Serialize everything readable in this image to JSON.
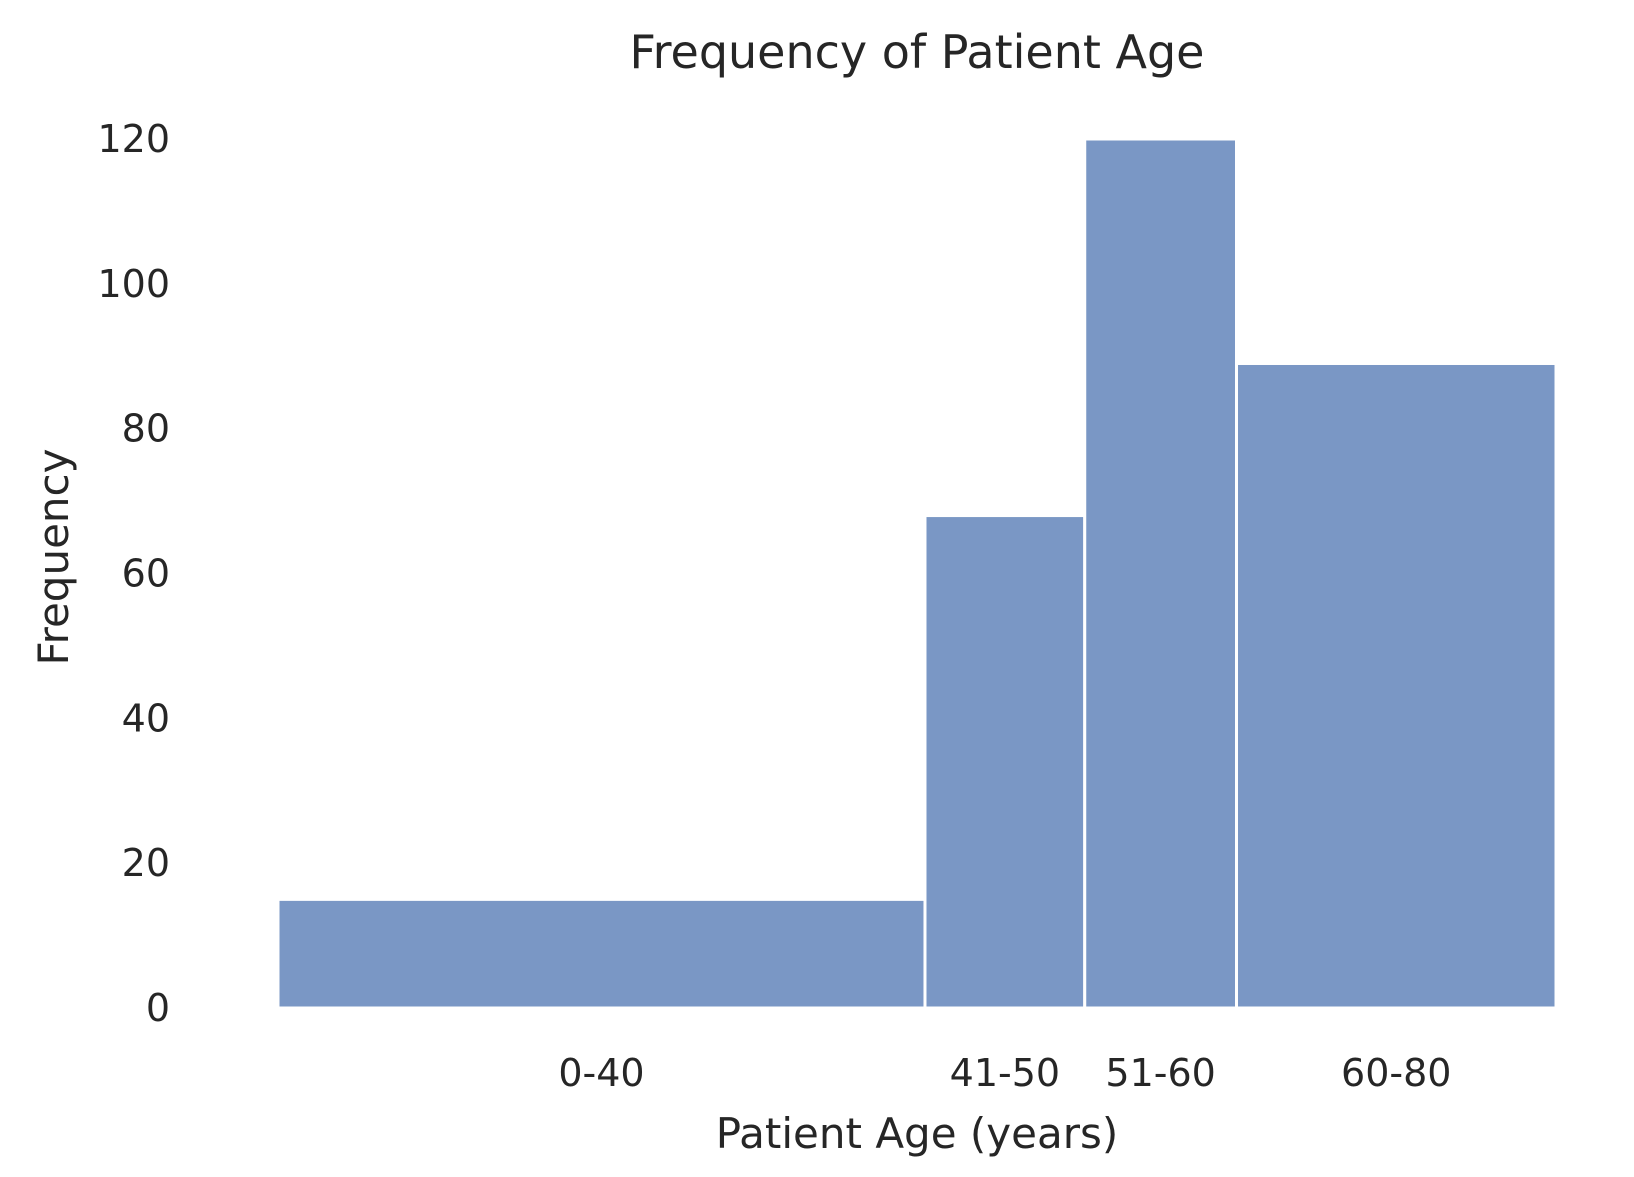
{
  "chart_data": {
    "type": "bar",
    "title": "Frequency of Patient Age",
    "xlabel": "Patient Age (years)",
    "ylabel": "Frequency",
    "categories": [
      "0-40",
      "41-50",
      "51-60",
      "60-80"
    ],
    "bins": [
      {
        "label": "0-40",
        "start": 0,
        "end": 40,
        "value": 15
      },
      {
        "label": "41-50",
        "start": 41,
        "end": 50,
        "value": 68
      },
      {
        "label": "51-60",
        "start": 51,
        "end": 60,
        "value": 120
      },
      {
        "label": "60-80",
        "start": 60,
        "end": 80,
        "value": 89
      }
    ],
    "values": [
      15,
      68,
      120,
      89
    ],
    "ylim": [
      0,
      120
    ],
    "yticks": [
      0,
      20,
      40,
      60,
      80,
      100,
      120
    ],
    "grid": false,
    "legend": "none",
    "colors": {
      "bar": "#7a97c5",
      "bar_edge": "#ffffff",
      "text": "#262626"
    }
  }
}
